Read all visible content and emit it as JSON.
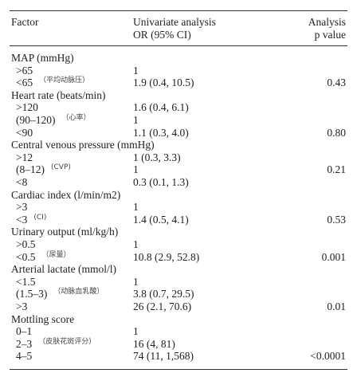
{
  "header": {
    "factor": "Factor",
    "or_line1": "Univariate analysis",
    "or_line2": "OR (95% CI)",
    "p_line1": "Analysis",
    "p_line2": "p value"
  },
  "sections": [
    {
      "title": "MAP (mmHg)",
      "rows": [
        {
          "factor": ">65",
          "or": "1"
        },
        {
          "factor": "<65",
          "or": "1.9 (0.4, 10.5)",
          "p": "0.43",
          "note": "（平均动脉压）"
        }
      ]
    },
    {
      "title": "Heart rate (beats/min)",
      "rows": [
        {
          "factor": ">120",
          "or": "1.6 (0.4, 6.1)"
        },
        {
          "factor": "(90–120)",
          "or": "1",
          "note": "（心率）"
        },
        {
          "factor": "<90",
          "or": "1.1 (0.3, 4.0)",
          "p": "0.80"
        }
      ]
    },
    {
      "title": "Central venous pressure (mmHg)",
      "rows": [
        {
          "factor": ">12",
          "or": "1 (0.3, 3.3)"
        },
        {
          "factor": "(8–12)",
          "or": "1",
          "p": "0.21",
          "note": "(CVP)"
        },
        {
          "factor": "<8",
          "or": "0.3 (0.1, 1.3)"
        }
      ]
    },
    {
      "title": "Cardiac index (l/min/m2)",
      "rows": [
        {
          "factor": ">3",
          "or": "1"
        },
        {
          "factor": "<3",
          "or": "1.4 (0.5, 4.1)",
          "p": "0.53",
          "note": "(CI)"
        }
      ]
    },
    {
      "title": "Urinary output (ml/kg/h)",
      "rows": [
        {
          "factor": ">0.5",
          "or": "1"
        },
        {
          "factor": "<0.5",
          "or": "10.8 (2.9, 52.8)",
          "p": "0.001",
          "note": "（尿量）"
        }
      ]
    },
    {
      "title": "Arterial lactate (mmol/l)",
      "rows": [
        {
          "factor": "<1.5",
          "or": "1"
        },
        {
          "factor": "(1.5–3)",
          "or": "3.8 (0.7, 29.5)",
          "note": "（动脉血乳酸）"
        },
        {
          "factor": ">3",
          "or": "26 (2.1, 70.6)",
          "p": "0.01"
        }
      ]
    },
    {
      "title": "Mottling score",
      "rows": [
        {
          "factor": "0–1",
          "or": "1"
        },
        {
          "factor": "2–3",
          "or": "16 (4, 81)",
          "note": "（皮肤花斑评分）"
        },
        {
          "factor": "4–5",
          "or": "74 (11, 1,568)",
          "p": "<0.0001"
        }
      ]
    }
  ]
}
